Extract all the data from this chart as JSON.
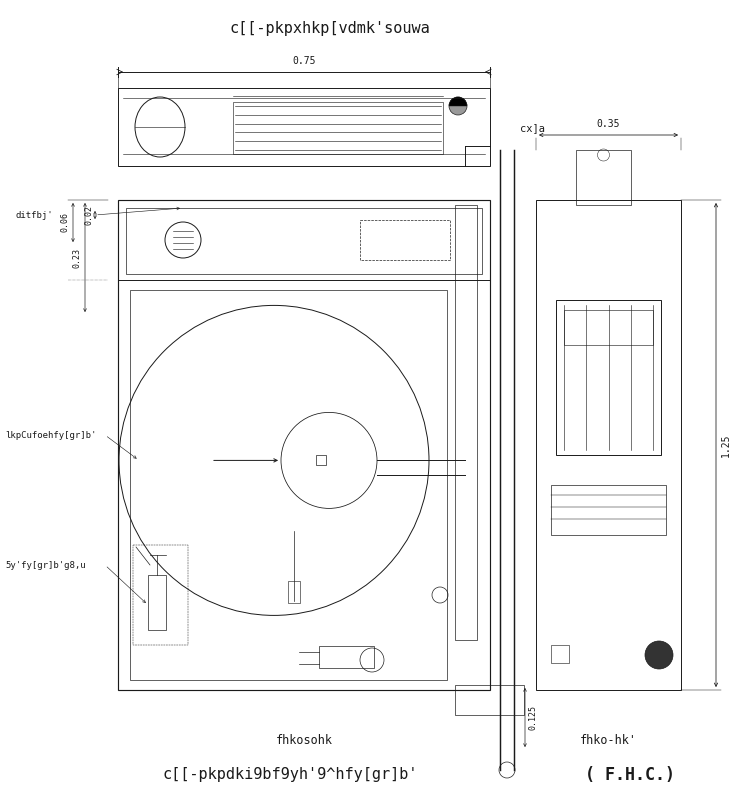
{
  "title_top": "c[[-pkpxhkp[vdmk'souwa",
  "title_bottom": "c[[-pkpdki9bf9yh'9^hfy[gr]b'",
  "brand": "( F.H.C.)",
  "label_front": "fhkosohk",
  "label_side": "fhko-hk'",
  "label_view": "cx]a",
  "label_ditfbj": "ditfbj'",
  "label_lkp": "lkpCufoehfy[gr]b'",
  "label_5y": "5y'fy[gr]b'g8,u",
  "dim_075": "0.75",
  "dim_035": "0.35",
  "dim_125": "1.25",
  "dim_0125": "0.125",
  "dim_006": "0.06",
  "dim_023": "0.23",
  "dim_002": "0.02",
  "bg_color": "#ffffff",
  "line_color": "#1a1a1a",
  "font_size_title": 11,
  "font_size_label": 6.5,
  "font_size_dim": 6,
  "font_size_brand": 11
}
